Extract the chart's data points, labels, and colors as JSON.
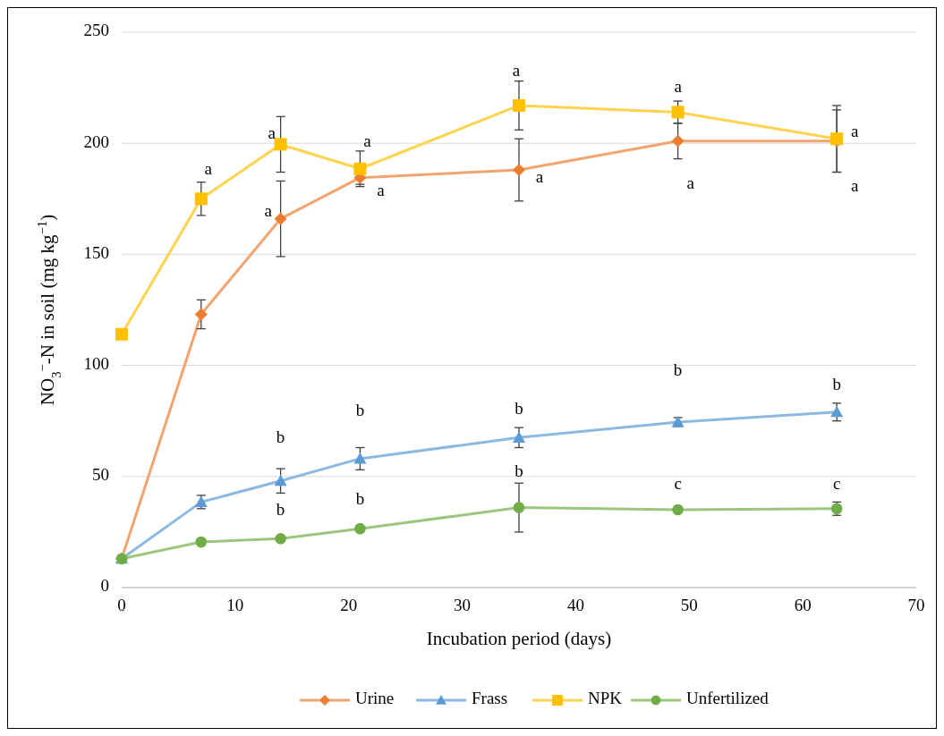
{
  "chart_data": {
    "type": "line",
    "xlabel": "Incubation period (days)",
    "ylabel": "NO$_{3}$$^{−}$-N in soil (mg kg$^{−1}$)",
    "xlim": [
      0,
      70
    ],
    "xticks": [
      0,
      10,
      20,
      30,
      40,
      50,
      60,
      70
    ],
    "ylim": [
      0,
      250
    ],
    "yticks": [
      0,
      50,
      100,
      150,
      200,
      250
    ],
    "grid": "y",
    "legend": "bottom",
    "series": [
      {
        "name": "Urine",
        "color": "#ed7d31",
        "marker": "diamond",
        "x": [
          0,
          7,
          14,
          21,
          35,
          49,
          63
        ],
        "values": [
          13,
          123,
          166,
          184.5,
          188,
          201,
          201
        ],
        "errors": [
          null,
          6.5,
          17,
          3,
          14,
          8,
          14
        ]
      },
      {
        "name": "Frass",
        "color": "#5b9bd5",
        "marker": "triangle",
        "x": [
          0,
          7,
          14,
          21,
          35,
          49,
          63
        ],
        "values": [
          13,
          38.5,
          48,
          58,
          67.5,
          74.5,
          79
        ],
        "errors": [
          null,
          3,
          5.5,
          5,
          4.5,
          2,
          4
        ]
      },
      {
        "name": "NPK",
        "color": "#ffc000",
        "marker": "square",
        "x": [
          0,
          7,
          14,
          21,
          35,
          49,
          63
        ],
        "values": [
          114,
          175,
          199.5,
          188.5,
          217,
          214,
          202
        ],
        "errors": [
          null,
          7.5,
          12.5,
          8,
          11,
          5,
          15
        ]
      },
      {
        "name": "Unfertilized",
        "color": "#70ad47",
        "marker": "circle",
        "x": [
          0,
          7,
          14,
          21,
          35,
          49,
          63
        ],
        "values": [
          13,
          20.5,
          22,
          26.5,
          36,
          35,
          35.5
        ],
        "errors": [
          null,
          null,
          null,
          null,
          11,
          null,
          3
        ]
      }
    ],
    "annotations": [
      {
        "text": "a",
        "x": 7,
        "y": 175
      },
      {
        "text": "a",
        "x": 14,
        "y": 199.5
      },
      {
        "text": "a",
        "x": 14,
        "y": 166
      },
      {
        "text": "a",
        "x": 21,
        "y": 188.5
      },
      {
        "text": "a",
        "x": 21,
        "y": 184.5
      },
      {
        "text": "a",
        "x": 35,
        "y": 217
      },
      {
        "text": "a",
        "x": 35,
        "y": 188
      },
      {
        "text": "a",
        "x": 49,
        "y": 214
      },
      {
        "text": "a",
        "x": 49,
        "y": 201
      },
      {
        "text": "a",
        "x": 63,
        "y": 202
      },
      {
        "text": "a",
        "x": 63,
        "y": 201
      },
      {
        "text": "b",
        "x": 14,
        "y": 48
      },
      {
        "text": "b",
        "x": 21,
        "y": 58
      },
      {
        "text": "b",
        "x": 35,
        "y": 67.5
      },
      {
        "text": "b",
        "x": 49,
        "y": 74.5
      },
      {
        "text": "b",
        "x": 63,
        "y": 79
      },
      {
        "text": "b",
        "x": 14,
        "y": 22
      },
      {
        "text": "b",
        "x": 21,
        "y": 26.5
      },
      {
        "text": "b",
        "x": 35,
        "y": 36
      },
      {
        "text": "c",
        "x": 49,
        "y": 35
      },
      {
        "text": "c",
        "x": 63,
        "y": 35.5
      }
    ]
  }
}
